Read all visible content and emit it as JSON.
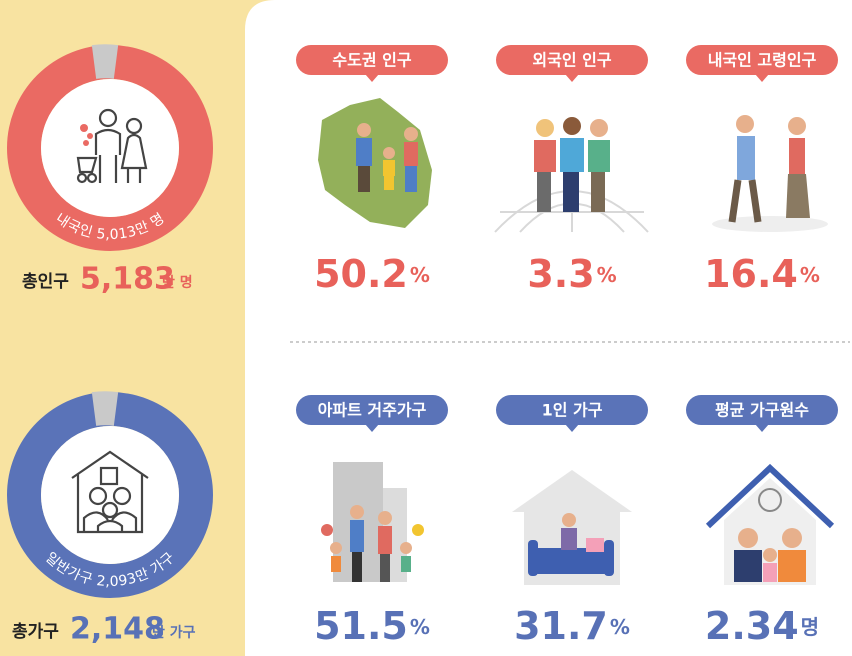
{
  "population": {
    "domestic_label": "내국인 5,013만 명",
    "total_label": "총인구",
    "total_value": "5,183",
    "total_unit": "만 명"
  },
  "households": {
    "general_label": "일반가구 2,093만 가구",
    "total_label": "총가구",
    "total_value": "2,148",
    "total_unit": "만 가구"
  },
  "stats": [
    {
      "label": "수도권 인구",
      "value": "50.2",
      "unit": "%"
    },
    {
      "label": "외국인 인구",
      "value": "3.3",
      "unit": "%"
    },
    {
      "label": "내국인 고령인구",
      "value": "16.4",
      "unit": "%"
    },
    {
      "label": "아파트 거주가구",
      "value": "51.5",
      "unit": "%"
    },
    {
      "label": "1인 가구",
      "value": "31.7",
      "unit": "%"
    },
    {
      "label": "평균 가구원수",
      "value": "2.34",
      "unit": "명"
    }
  ]
}
